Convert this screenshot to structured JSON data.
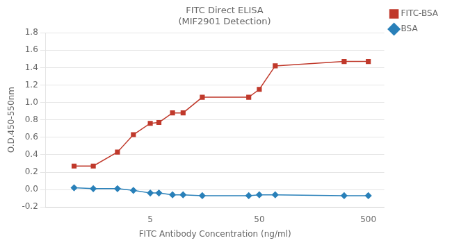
{
  "chart_data": {
    "type": "line",
    "title": "FITC Direct ELISA\n(MIF2901 Detection)",
    "xlabel": "FITC Antibody Concentration (ng/ml)",
    "ylabel": "O.D.450-550nm",
    "x": [
      1,
      1.5,
      2.5,
      3.5,
      5,
      6,
      8,
      10,
      15,
      40,
      50,
      70,
      300,
      500
    ],
    "series": [
      {
        "name": "FITC-BSA",
        "color": "#C0392B",
        "marker": "square",
        "values": [
          0.27,
          0.27,
          0.43,
          0.63,
          0.76,
          0.77,
          0.88,
          0.88,
          1.06,
          1.06,
          1.15,
          1.42,
          1.47,
          1.47
        ]
      },
      {
        "name": "BSA",
        "color": "#2980B9",
        "marker": "diamond",
        "values": [
          0.02,
          0.01,
          0.01,
          -0.01,
          -0.04,
          -0.04,
          -0.06,
          -0.06,
          -0.07,
          -0.07,
          -0.06,
          -0.06,
          -0.07,
          -0.07
        ]
      }
    ],
    "log": "x",
    "xlim": [
      0.55,
      700
    ],
    "xticks": [
      5,
      50,
      500
    ],
    "ylim": [
      -0.2,
      1.8
    ],
    "yticks": [
      -0.2,
      {
        "value": 0,
        "label": "0.0"
      },
      0.2,
      0.4,
      0.6,
      0.8,
      {
        "value": 1,
        "label": "1.0"
      },
      1.2,
      1.4,
      1.6,
      1.8
    ],
    "grid": "y",
    "legend": "right"
  }
}
